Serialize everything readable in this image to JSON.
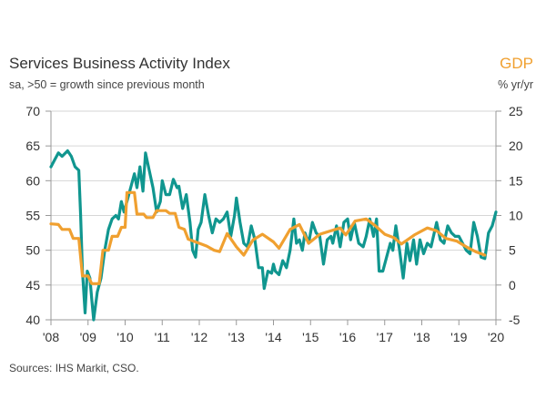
{
  "chart_data": {
    "type": "line",
    "title": "Services Business Activity Index",
    "subtitle": "sa, >50 = growth since previous month",
    "right_axis_title": "GDP",
    "right_axis_subtitle": "% yr/yr",
    "source": "Sources: IHS Markit, CSO.",
    "xlim": [
      2008,
      2020
    ],
    "x_tick_labels": [
      "'08",
      "'09",
      "'10",
      "'11",
      "'12",
      "'13",
      "'14",
      "'15",
      "'16",
      "'17",
      "'18",
      "'19",
      "'20"
    ],
    "x_tick_values": [
      2008,
      2009,
      2010,
      2011,
      2012,
      2013,
      2014,
      2015,
      2016,
      2017,
      2018,
      2019,
      2020
    ],
    "ylim_left": [
      40,
      70
    ],
    "y_left_ticks": [
      40,
      45,
      50,
      55,
      60,
      65,
      70
    ],
    "ylim_right": [
      -5,
      25
    ],
    "y_right_ticks": [
      -5,
      0,
      5,
      10,
      15,
      20,
      25
    ],
    "grid": true,
    "colors": {
      "pmi": "#10968f",
      "gdp": "#f0a030",
      "grid": "#d6d6d6",
      "axis": "#999999"
    },
    "series": [
      {
        "axis": "left",
        "color": "#10968f",
        "points": [
          [
            2008.0,
            62
          ],
          [
            2008.1,
            63
          ],
          [
            2008.2,
            64
          ],
          [
            2008.3,
            63.5
          ],
          [
            2008.45,
            64.3
          ],
          [
            2008.55,
            63.5
          ],
          [
            2008.65,
            62
          ],
          [
            2008.75,
            61.5
          ],
          [
            2008.8,
            55
          ],
          [
            2008.85,
            47
          ],
          [
            2008.92,
            41
          ],
          [
            2008.98,
            47
          ],
          [
            2009.05,
            46
          ],
          [
            2009.1,
            43
          ],
          [
            2009.15,
            40
          ],
          [
            2009.25,
            44
          ],
          [
            2009.35,
            46
          ],
          [
            2009.45,
            50
          ],
          [
            2009.55,
            53
          ],
          [
            2009.65,
            54.5
          ],
          [
            2009.75,
            55
          ],
          [
            2009.82,
            54.5
          ],
          [
            2009.9,
            57
          ],
          [
            2009.97,
            55.5
          ],
          [
            2010.05,
            57
          ],
          [
            2010.15,
            59
          ],
          [
            2010.25,
            61
          ],
          [
            2010.32,
            59
          ],
          [
            2010.4,
            62
          ],
          [
            2010.48,
            58.5
          ],
          [
            2010.55,
            64
          ],
          [
            2010.65,
            61.5
          ],
          [
            2010.75,
            59
          ],
          [
            2010.85,
            55.5
          ],
          [
            2010.95,
            57
          ],
          [
            2011.0,
            60
          ],
          [
            2011.1,
            58
          ],
          [
            2011.2,
            58
          ],
          [
            2011.3,
            60.2
          ],
          [
            2011.4,
            59
          ],
          [
            2011.45,
            59.2
          ],
          [
            2011.55,
            56
          ],
          [
            2011.65,
            58
          ],
          [
            2011.75,
            54
          ],
          [
            2011.82,
            50
          ],
          [
            2011.9,
            49
          ],
          [
            2011.97,
            53
          ],
          [
            2012.05,
            54
          ],
          [
            2012.15,
            58
          ],
          [
            2012.25,
            55
          ],
          [
            2012.35,
            52.5
          ],
          [
            2012.45,
            54.5
          ],
          [
            2012.55,
            54
          ],
          [
            2012.65,
            54.5
          ],
          [
            2012.75,
            55.5
          ],
          [
            2012.85,
            52
          ],
          [
            2012.95,
            55
          ],
          [
            2013.0,
            57.5
          ],
          [
            2013.1,
            54
          ],
          [
            2013.2,
            51
          ],
          [
            2013.3,
            50.5
          ],
          [
            2013.4,
            53.5
          ],
          [
            2013.5,
            51.5
          ],
          [
            2013.6,
            47.5
          ],
          [
            2013.7,
            47.5
          ],
          [
            2013.75,
            44.5
          ],
          [
            2013.85,
            47
          ],
          [
            2013.95,
            46.7
          ],
          [
            2014.0,
            48
          ],
          [
            2014.05,
            47
          ],
          [
            2014.15,
            46.5
          ],
          [
            2014.25,
            48.5
          ],
          [
            2014.35,
            47.5
          ],
          [
            2014.45,
            50
          ],
          [
            2014.55,
            54.5
          ],
          [
            2014.62,
            51
          ],
          [
            2014.7,
            51.5
          ],
          [
            2014.78,
            50
          ],
          [
            2014.85,
            52.5
          ],
          [
            2014.95,
            51
          ],
          [
            2015.05,
            54
          ],
          [
            2015.15,
            52.5
          ],
          [
            2015.25,
            52
          ],
          [
            2015.35,
            48
          ],
          [
            2015.45,
            51.5
          ],
          [
            2015.55,
            52
          ],
          [
            2015.6,
            51
          ],
          [
            2015.7,
            53.5
          ],
          [
            2015.8,
            50.5
          ],
          [
            2015.9,
            54
          ],
          [
            2016.0,
            54.5
          ],
          [
            2016.08,
            51.5
          ],
          [
            2016.18,
            54
          ],
          [
            2016.3,
            51
          ],
          [
            2016.42,
            50.5
          ],
          [
            2016.5,
            52
          ],
          [
            2016.6,
            54.5
          ],
          [
            2016.7,
            52
          ],
          [
            2016.78,
            54.5
          ],
          [
            2016.85,
            47
          ],
          [
            2016.95,
            47
          ],
          [
            2017.05,
            49
          ],
          [
            2017.15,
            51
          ],
          [
            2017.22,
            50
          ],
          [
            2017.3,
            53.5
          ],
          [
            2017.4,
            50
          ],
          [
            2017.5,
            46
          ],
          [
            2017.6,
            51
          ],
          [
            2017.68,
            48.5
          ],
          [
            2017.78,
            51.5
          ],
          [
            2017.86,
            48
          ],
          [
            2017.95,
            51.5
          ],
          [
            2018.05,
            49.5
          ],
          [
            2018.15,
            51
          ],
          [
            2018.25,
            50.5
          ],
          [
            2018.4,
            54
          ],
          [
            2018.5,
            51.5
          ],
          [
            2018.6,
            51
          ],
          [
            2018.7,
            53.5
          ],
          [
            2018.8,
            52.5
          ],
          [
            2018.9,
            52
          ],
          [
            2019.0,
            52
          ],
          [
            2019.1,
            51
          ],
          [
            2019.2,
            50
          ],
          [
            2019.3,
            49.5
          ],
          [
            2019.4,
            54
          ],
          [
            2019.5,
            52
          ],
          [
            2019.6,
            49
          ],
          [
            2019.7,
            48.8
          ],
          [
            2019.8,
            52.5
          ],
          [
            2019.9,
            53.5
          ],
          [
            2020.0,
            55.5
          ]
        ]
      },
      {
        "name": "GDP",
        "axis": "right",
        "color": "#f0a030",
        "points": [
          [
            2008.0,
            8.8
          ],
          [
            2008.2,
            8.7
          ],
          [
            2008.3,
            8
          ],
          [
            2008.5,
            8
          ],
          [
            2008.6,
            6.7
          ],
          [
            2008.75,
            6.7
          ],
          [
            2008.85,
            1.3
          ],
          [
            2009.0,
            1.3
          ],
          [
            2009.1,
            0.2
          ],
          [
            2009.3,
            0.2
          ],
          [
            2009.4,
            5
          ],
          [
            2009.55,
            5
          ],
          [
            2009.65,
            7
          ],
          [
            2009.8,
            7
          ],
          [
            2009.9,
            8.3
          ],
          [
            2010.0,
            8.3
          ],
          [
            2010.05,
            13.3
          ],
          [
            2010.25,
            13.3
          ],
          [
            2010.32,
            10.2
          ],
          [
            2010.5,
            10.2
          ],
          [
            2010.58,
            9.7
          ],
          [
            2010.75,
            9.7
          ],
          [
            2010.85,
            10.7
          ],
          [
            2011.1,
            10.7
          ],
          [
            2011.2,
            10.3
          ],
          [
            2011.35,
            10.3
          ],
          [
            2011.45,
            8.3
          ],
          [
            2011.6,
            8
          ],
          [
            2011.7,
            6.6
          ],
          [
            2011.85,
            6.3
          ],
          [
            2012.0,
            6
          ],
          [
            2012.2,
            5.6
          ],
          [
            2012.4,
            5
          ],
          [
            2012.55,
            4.8
          ],
          [
            2012.75,
            7.4
          ],
          [
            2013.0,
            5.5
          ],
          [
            2013.2,
            4.3
          ],
          [
            2013.45,
            6.5
          ],
          [
            2013.7,
            7.3
          ],
          [
            2014.0,
            6.2
          ],
          [
            2014.15,
            5.3
          ],
          [
            2014.45,
            8
          ],
          [
            2014.7,
            8.7
          ],
          [
            2014.95,
            6
          ],
          [
            2015.25,
            7.3
          ],
          [
            2015.8,
            8.2
          ],
          [
            2015.95,
            7.2
          ],
          [
            2016.2,
            9.2
          ],
          [
            2016.5,
            9.5
          ],
          [
            2016.75,
            8.5
          ],
          [
            2017.0,
            7.3
          ],
          [
            2017.25,
            6.8
          ],
          [
            2017.45,
            5.9
          ],
          [
            2017.8,
            7.2
          ],
          [
            2018.15,
            8.2
          ],
          [
            2018.4,
            7.8
          ],
          [
            2018.65,
            6.7
          ],
          [
            2018.95,
            6.3
          ],
          [
            2019.2,
            5.5
          ],
          [
            2019.45,
            4.8
          ],
          [
            2019.7,
            4.3
          ]
        ]
      }
    ]
  }
}
